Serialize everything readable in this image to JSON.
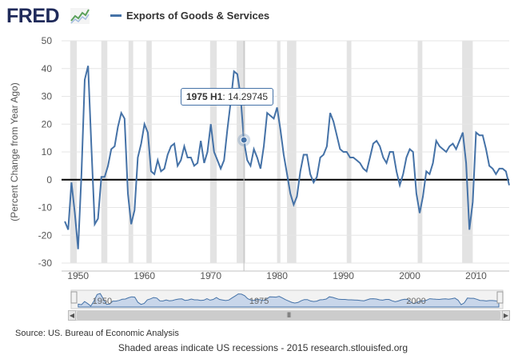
{
  "header": {
    "logo_text": "FRED",
    "logo_icon": "chart-line-icon"
  },
  "legend": {
    "label": "Exports of Goods & Services",
    "color": "#4572a7"
  },
  "tooltip": {
    "date": "1975 H1",
    "value": "14.29745"
  },
  "navigator": {
    "labels": [
      "1950",
      "1975",
      "2000"
    ],
    "thumb_glyph": "III"
  },
  "source": "Source: US. Bureau of Economic Analysis",
  "footer": "Shaded areas indicate US recessions - 2015 research.stlouisfed.org",
  "colors": {
    "line": "#4572a7",
    "recession": "#e3e3e3",
    "grid": "#e6e6e6",
    "navigator_fill": "#c8d6ea"
  },
  "chart_data": {
    "type": "line",
    "title": "",
    "xlabel": "",
    "ylabel": "(Percent Change from Year Ago)",
    "ylim": [
      -30,
      50
    ],
    "xlim": [
      1947.5,
      2015.0
    ],
    "yticks": [
      -30,
      -20,
      -10,
      0,
      10,
      20,
      30,
      40,
      50
    ],
    "xticks": [
      "1950",
      "1960",
      "1970",
      "1980",
      "1990",
      "2000",
      "2010"
    ],
    "grid": true,
    "legend_position": "top",
    "recessions": [
      [
        1948.8,
        1949.8
      ],
      [
        1953.5,
        1954.4
      ],
      [
        1957.6,
        1958.3
      ],
      [
        1960.3,
        1961.1
      ],
      [
        1969.9,
        1970.9
      ],
      [
        1973.9,
        1975.2
      ],
      [
        1980.0,
        1980.5
      ],
      [
        1981.5,
        1982.9
      ],
      [
        1990.5,
        1991.2
      ],
      [
        2001.2,
        2001.9
      ],
      [
        2007.9,
        2009.5
      ]
    ],
    "series": [
      {
        "name": "Exports of Goods & Services",
        "x": [
          1948.0,
          1948.5,
          1949.0,
          1949.5,
          1950.0,
          1950.5,
          1951.0,
          1951.5,
          1952.0,
          1952.5,
          1953.0,
          1953.5,
          1954.0,
          1954.5,
          1955.0,
          1955.5,
          1956.0,
          1956.5,
          1957.0,
          1957.5,
          1958.0,
          1958.5,
          1959.0,
          1959.5,
          1960.0,
          1960.5,
          1961.0,
          1961.5,
          1962.0,
          1962.5,
          1963.0,
          1963.5,
          1964.0,
          1964.5,
          1965.0,
          1965.5,
          1966.0,
          1966.5,
          1967.0,
          1967.5,
          1968.0,
          1968.5,
          1969.0,
          1969.5,
          1970.0,
          1970.5,
          1971.0,
          1971.5,
          1972.0,
          1972.5,
          1973.0,
          1973.5,
          1974.0,
          1974.5,
          1975.0,
          1975.5,
          1976.0,
          1976.5,
          1977.0,
          1977.5,
          1978.0,
          1978.5,
          1979.0,
          1979.5,
          1980.0,
          1980.5,
          1981.0,
          1981.5,
          1982.0,
          1982.5,
          1983.0,
          1983.5,
          1984.0,
          1984.5,
          1985.0,
          1985.5,
          1986.0,
          1986.5,
          1987.0,
          1987.5,
          1988.0,
          1988.5,
          1989.0,
          1989.5,
          1990.0,
          1990.5,
          1991.0,
          1991.5,
          1992.0,
          1992.5,
          1993.0,
          1993.5,
          1994.0,
          1994.5,
          1995.0,
          1995.5,
          1996.0,
          1996.5,
          1997.0,
          1997.5,
          1998.0,
          1998.5,
          1999.0,
          1999.5,
          2000.0,
          2000.5,
          2001.0,
          2001.5,
          2002.0,
          2002.5,
          2003.0,
          2003.5,
          2004.0,
          2004.5,
          2005.0,
          2005.5,
          2006.0,
          2006.5,
          2007.0,
          2007.5,
          2008.0,
          2008.5,
          2009.0,
          2009.5,
          2010.0,
          2010.5,
          2011.0,
          2011.5,
          2012.0,
          2012.5,
          2013.0,
          2013.5,
          2014.0,
          2014.5,
          2015.0
        ],
        "values": [
          -15,
          -18,
          -1,
          -12,
          -25,
          2,
          36,
          41,
          12,
          -16,
          -14,
          1,
          1,
          5,
          11,
          12,
          19,
          24,
          22,
          -5,
          -16,
          -11,
          8,
          13,
          20,
          17,
          3,
          2,
          7,
          3,
          4,
          9,
          12,
          13,
          5,
          7,
          12,
          8,
          8,
          5,
          6,
          14,
          6,
          10,
          20,
          10,
          7,
          4,
          7,
          18,
          28,
          39,
          38,
          30,
          14,
          7,
          5,
          11,
          8,
          4,
          12,
          24,
          23,
          22,
          26,
          18,
          9,
          2,
          -5,
          -9,
          -6,
          3,
          9,
          9,
          2,
          -1,
          1,
          8,
          9,
          12,
          24,
          21,
          16,
          11,
          10,
          10,
          8,
          8,
          7,
          6,
          4,
          3,
          8,
          13,
          14,
          12,
          8,
          6,
          10,
          10,
          3,
          -2,
          2,
          8,
          11,
          10,
          -5,
          -12,
          -6,
          3,
          2,
          6,
          14,
          12,
          11,
          10,
          12,
          13,
          11,
          14,
          17,
          6,
          -18,
          -8,
          17,
          16,
          16,
          11,
          5,
          4,
          2,
          4,
          4,
          3,
          -2
        ]
      }
    ]
  }
}
